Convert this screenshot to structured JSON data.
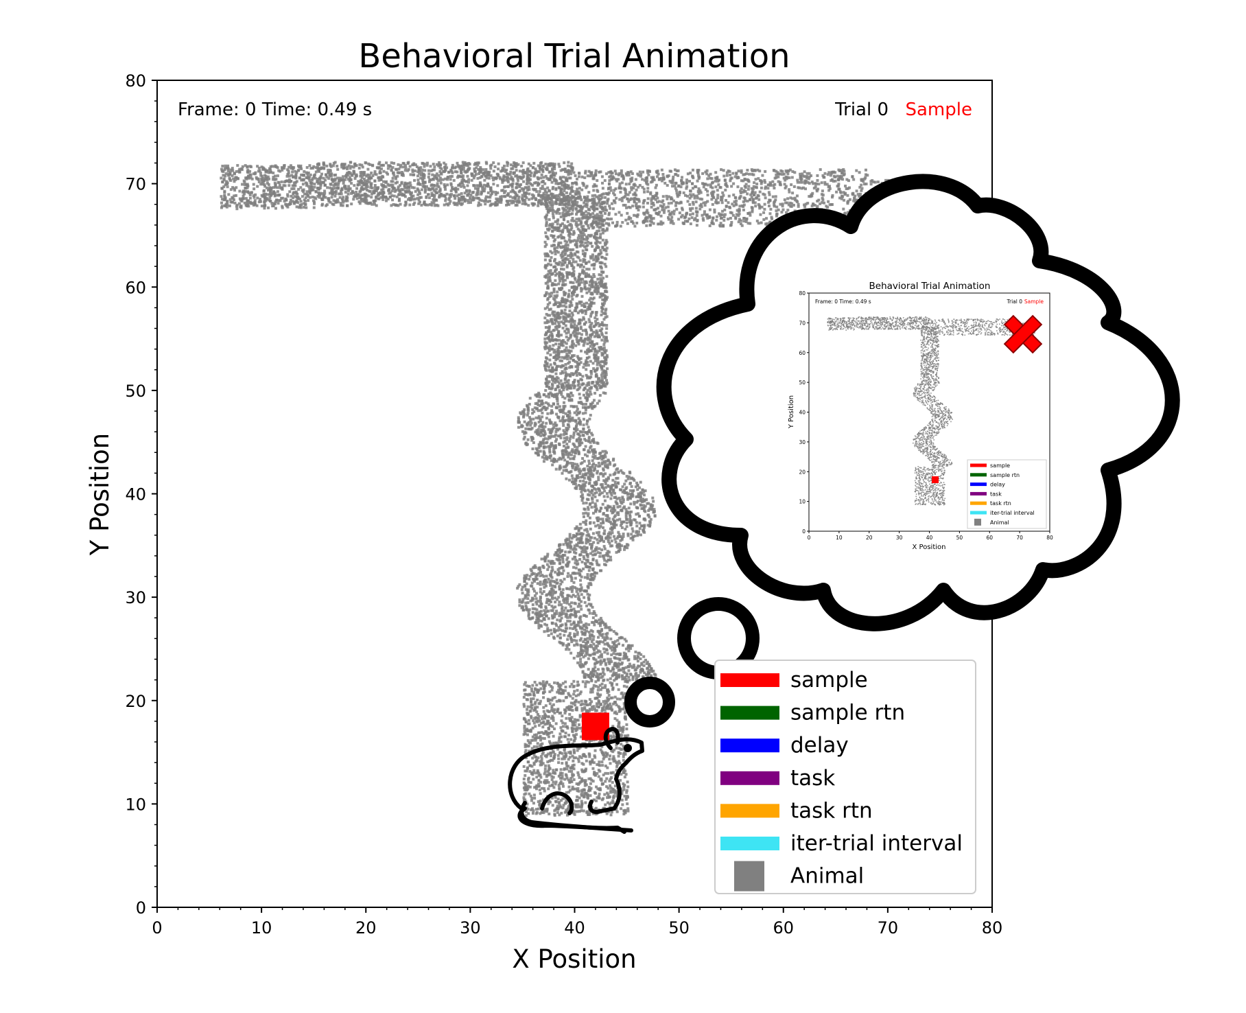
{
  "colors": {
    "sample": "#ff0000",
    "sample_rtn": "#006400",
    "delay": "#0000ff",
    "task": "#800080",
    "task_rtn": "#ffa500",
    "iti": "#3ee4f4",
    "animal": "#808080",
    "trajectory": "#7f7f7f",
    "axes": "#000000"
  },
  "chart_data": {
    "type": "scatter",
    "title": "Behavioral Trial Animation",
    "xlabel": "X Position",
    "ylabel": "Y Position",
    "xlim": [
      0,
      80
    ],
    "ylim": [
      0,
      80
    ],
    "xticks": [
      "0",
      "10",
      "20",
      "30",
      "40",
      "50",
      "60",
      "70",
      "80"
    ],
    "yticks": [
      "0",
      "10",
      "20",
      "30",
      "40",
      "50",
      "60",
      "70",
      "80"
    ],
    "grid": false,
    "legend_position": "bottom-right",
    "frame_text": "Frame: 0  Time: 0.49 s",
    "trial_text": "Trial 0",
    "phase_text": "Sample",
    "current_position": {
      "x": 42,
      "y": 17.5
    },
    "legend": [
      {
        "label": "sample",
        "color": "#ff0000",
        "marker": "line"
      },
      {
        "label": "sample rtn",
        "color": "#006400",
        "marker": "line"
      },
      {
        "label": "delay",
        "color": "#0000ff",
        "marker": "line"
      },
      {
        "label": "task",
        "color": "#800080",
        "marker": "line"
      },
      {
        "label": "task rtn",
        "color": "#ffa500",
        "marker": "line"
      },
      {
        "label": "iter-trial interval",
        "color": "#3ee4f4",
        "marker": "line"
      },
      {
        "label": "Animal",
        "color": "#808080",
        "marker": "square"
      }
    ],
    "trajectory_regions": [
      {
        "part": "left-arm",
        "x": [
          6,
          40
        ],
        "y": [
          67.5,
          72.5
        ]
      },
      {
        "part": "right-arm",
        "x": [
          40,
          75
        ],
        "y": [
          65,
          73
        ]
      },
      {
        "part": "stem-upper",
        "x": [
          37,
          46
        ],
        "y": [
          50,
          70
        ]
      },
      {
        "part": "stem-wiggle",
        "x": [
          34,
          46
        ],
        "y": [
          22,
          50
        ]
      },
      {
        "part": "start-box",
        "x": [
          33,
          46
        ],
        "y": [
          9,
          22
        ]
      }
    ]
  },
  "inset": {
    "title": "Behavioral Trial Animation",
    "xlabel": "X Position",
    "ylabel": "Y Position",
    "frame_text": "Frame: 0  Time: 0.49 s",
    "trial_text": "Trial 0",
    "phase_text": "Sample",
    "xticks": [
      "0",
      "10",
      "20",
      "30",
      "40",
      "50",
      "60",
      "70",
      "80"
    ],
    "yticks": [
      "0",
      "10",
      "20",
      "30",
      "40",
      "50",
      "60",
      "70",
      "80"
    ],
    "legend": [
      "sample",
      "sample rtn",
      "delay",
      "task",
      "task rtn",
      "iter-trial interval",
      "Animal"
    ],
    "goal_marker": "x-icon"
  }
}
